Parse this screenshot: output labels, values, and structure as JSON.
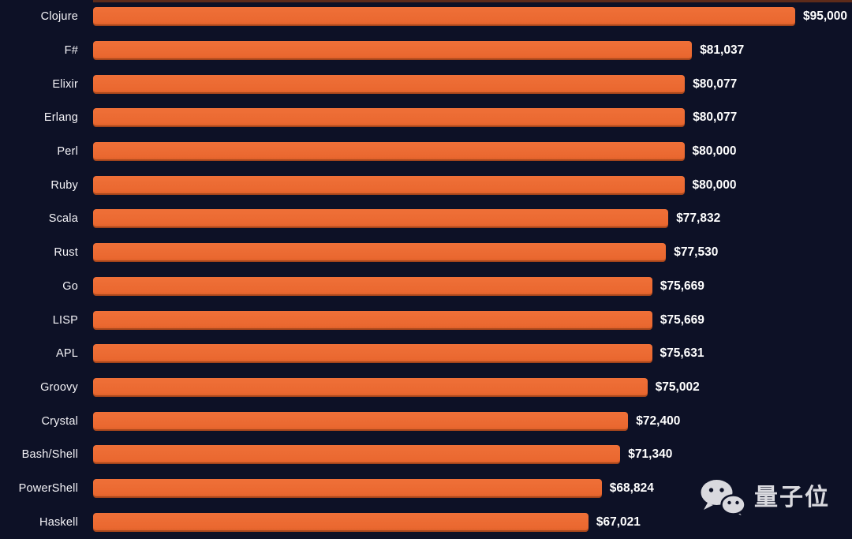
{
  "chart_data": {
    "type": "bar",
    "orientation": "horizontal",
    "title": "",
    "xlabel": "",
    "ylabel": "",
    "categories": [
      "Clojure",
      "F#",
      "Elixir",
      "Erlang",
      "Perl",
      "Ruby",
      "Scala",
      "Rust",
      "Go",
      "LISP",
      "APL",
      "Groovy",
      "Crystal",
      "Bash/Shell",
      "PowerShell",
      "Haskell"
    ],
    "values": [
      95000,
      81037,
      80077,
      80077,
      80000,
      80000,
      77832,
      77530,
      75669,
      75669,
      75631,
      75002,
      72400,
      71340,
      68824,
      67021
    ],
    "value_labels": [
      "$95,000",
      "$81,037",
      "$80,077",
      "$80,077",
      "$80,000",
      "$80,000",
      "$77,832",
      "$77,530",
      "$75,669",
      "$75,669",
      "$75,631",
      "$75,002",
      "$72,400",
      "$71,340",
      "$68,824",
      "$67,021"
    ],
    "xlim": [
      0,
      95000
    ],
    "grid": false,
    "legend": false,
    "bar_color": "#EA6830",
    "background_color": "#0D1126",
    "label_color": "#F5F4F8",
    "value_color": "#FFFFFF"
  },
  "watermark": {
    "text": "量子位",
    "icon": "wechat-icon",
    "color": "#D9D9DE"
  }
}
